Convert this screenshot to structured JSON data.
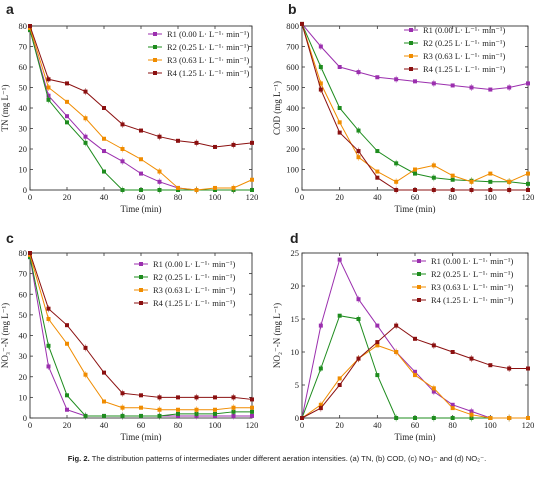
{
  "figure": {
    "caption_label": "Fig. 2.",
    "caption_text": "The distribution patterns of intermediates under different aeration intensities. (a) TN, (b) COD, (c) NO₃⁻ and (d) NO₂⁻."
  },
  "colors": {
    "R1": "#9b2fae",
    "R2": "#1e8c1e",
    "R3": "#f08c00",
    "R4": "#8b1010"
  },
  "chart_data": [
    {
      "id": "a",
      "type": "line",
      "letter": "a",
      "xlabel": "Time (min)",
      "ylabel": "TN (mg L⁻¹)",
      "xlim": [
        0,
        120
      ],
      "ylim": [
        0,
        80
      ],
      "xticks": [
        0,
        20,
        40,
        60,
        80,
        100,
        120
      ],
      "yticks": [
        0,
        10,
        20,
        30,
        40,
        50,
        60,
        70,
        80
      ],
      "legend_position": "top-right",
      "x": [
        0,
        10,
        20,
        30,
        40,
        50,
        60,
        70,
        80,
        90,
        100,
        110,
        120
      ],
      "series": [
        {
          "key": "R1",
          "name": "R1 (0.00 L· L⁻¹· min⁻¹)",
          "marker": "square",
          "values": [
            78,
            46,
            36,
            26,
            19,
            14,
            8,
            4,
            1,
            0,
            0,
            0,
            0
          ]
        },
        {
          "key": "R2",
          "name": "R2 (0.25 L· L⁻¹· min⁻¹)",
          "marker": "square",
          "values": [
            78,
            44,
            33,
            23,
            9,
            0,
            0,
            0,
            0,
            0,
            0,
            0,
            0
          ]
        },
        {
          "key": "R3",
          "name": "R3 (0.63 L· L⁻¹· min⁻¹)",
          "marker": "square",
          "values": [
            79,
            50,
            43,
            35,
            25,
            20,
            15,
            9,
            1,
            0,
            1,
            1,
            5
          ]
        },
        {
          "key": "R4",
          "name": "R4 (1.25 L· L⁻¹· min⁻¹)",
          "marker": "square",
          "values": [
            80,
            54,
            52,
            48,
            40,
            32,
            29,
            26,
            24,
            23,
            21,
            22,
            23
          ]
        }
      ]
    },
    {
      "id": "b",
      "type": "line",
      "letter": "b",
      "xlabel": "Time (min)",
      "ylabel": "COD (mg L⁻¹)",
      "xlim": [
        0,
        120
      ],
      "ylim": [
        0,
        800
      ],
      "xticks": [
        0,
        20,
        40,
        60,
        80,
        100,
        120
      ],
      "yticks": [
        0,
        100,
        200,
        300,
        400,
        500,
        600,
        700,
        800
      ],
      "legend_position": "top-right",
      "x": [
        0,
        10,
        20,
        30,
        40,
        50,
        60,
        70,
        80,
        90,
        100,
        110,
        120
      ],
      "series": [
        {
          "key": "R1",
          "name": "R1 (0.00 L· L⁻¹· min⁻¹)",
          "marker": "square",
          "values": [
            810,
            700,
            600,
            575,
            550,
            540,
            530,
            520,
            510,
            500,
            490,
            500,
            520
          ]
        },
        {
          "key": "R2",
          "name": "R2 (0.25 L· L⁻¹· min⁻¹)",
          "marker": "square",
          "values": [
            810,
            600,
            400,
            290,
            190,
            130,
            80,
            60,
            50,
            45,
            40,
            40,
            30
          ]
        },
        {
          "key": "R3",
          "name": "R3 (0.63 L· L⁻¹· min⁻¹)",
          "marker": "square",
          "values": [
            810,
            520,
            330,
            160,
            90,
            40,
            100,
            120,
            70,
            40,
            80,
            40,
            80
          ]
        },
        {
          "key": "R4",
          "name": "R4 (1.25 L· L⁻¹· min⁻¹)",
          "marker": "square",
          "values": [
            810,
            490,
            280,
            190,
            60,
            0,
            0,
            0,
            0,
            0,
            0,
            0,
            0
          ]
        }
      ]
    },
    {
      "id": "c",
      "type": "line",
      "letter": "c",
      "xlabel": "Time (min)",
      "ylabel": "NO₃⁻-N (mg L⁻¹)",
      "xlim": [
        0,
        120
      ],
      "ylim": [
        0,
        80
      ],
      "xticks": [
        0,
        20,
        40,
        60,
        80,
        100,
        120
      ],
      "yticks": [
        0,
        10,
        20,
        30,
        40,
        50,
        60,
        70,
        80
      ],
      "legend_position": "top-right",
      "x": [
        0,
        10,
        20,
        30,
        40,
        50,
        60,
        70,
        80,
        90,
        100,
        110,
        120
      ],
      "series": [
        {
          "key": "R1",
          "name": "R1 (0.00 L· L⁻¹· min⁻¹)",
          "marker": "square",
          "values": [
            78,
            25,
            4,
            1,
            1,
            1,
            1,
            1,
            1,
            1,
            1,
            1,
            1
          ]
        },
        {
          "key": "R2",
          "name": "R2 (0.25 L· L⁻¹· min⁻¹)",
          "marker": "square",
          "values": [
            78,
            35,
            11,
            1,
            1,
            1,
            1,
            1,
            2,
            2,
            2,
            3,
            3
          ]
        },
        {
          "key": "R3",
          "name": "R3 (0.63 L· L⁻¹· min⁻¹)",
          "marker": "square",
          "values": [
            79,
            48,
            36,
            21,
            8,
            5,
            5,
            4,
            4,
            4,
            4,
            5,
            5
          ]
        },
        {
          "key": "R4",
          "name": "R4 (1.25 L· L⁻¹· min⁻¹)",
          "marker": "square",
          "values": [
            80,
            53,
            45,
            34,
            22,
            12,
            11,
            10,
            10,
            10,
            10,
            10,
            9
          ]
        }
      ]
    },
    {
      "id": "d",
      "type": "line",
      "letter": "d",
      "xlabel": "Time (min)",
      "ylabel": "NO₂⁻-N (mg L⁻¹)",
      "xlim": [
        0,
        120
      ],
      "ylim": [
        0,
        25
      ],
      "xticks": [
        0,
        20,
        40,
        60,
        80,
        100,
        120
      ],
      "yticks": [
        0,
        5,
        10,
        15,
        20,
        25
      ],
      "legend_position": "top-right",
      "x": [
        0,
        10,
        20,
        30,
        40,
        50,
        60,
        70,
        80,
        90,
        100,
        110,
        120
      ],
      "series": [
        {
          "key": "R1",
          "name": "R1 (0.00 L· L⁻¹· min⁻¹)",
          "marker": "square",
          "values": [
            0,
            14,
            24,
            18,
            14,
            10,
            7,
            4,
            2,
            1,
            0,
            0,
            0
          ]
        },
        {
          "key": "R2",
          "name": "R2 (0.25 L· L⁻¹· min⁻¹)",
          "marker": "square",
          "values": [
            0,
            7.5,
            15.5,
            15,
            6.5,
            0,
            0,
            0,
            0,
            0,
            0,
            0,
            0
          ]
        },
        {
          "key": "R3",
          "name": "R3 (0.63 L· L⁻¹· min⁻¹)",
          "marker": "square",
          "values": [
            0,
            2,
            6,
            9,
            11,
            10,
            6.5,
            4.5,
            1.5,
            0.5,
            0,
            0,
            0
          ]
        },
        {
          "key": "R4",
          "name": "R4 (1.25 L· L⁻¹· min⁻¹)",
          "marker": "square",
          "values": [
            0,
            1.5,
            5,
            9,
            11.5,
            14,
            12,
            11,
            10,
            9,
            8,
            7.5,
            7.5
          ]
        }
      ]
    }
  ]
}
